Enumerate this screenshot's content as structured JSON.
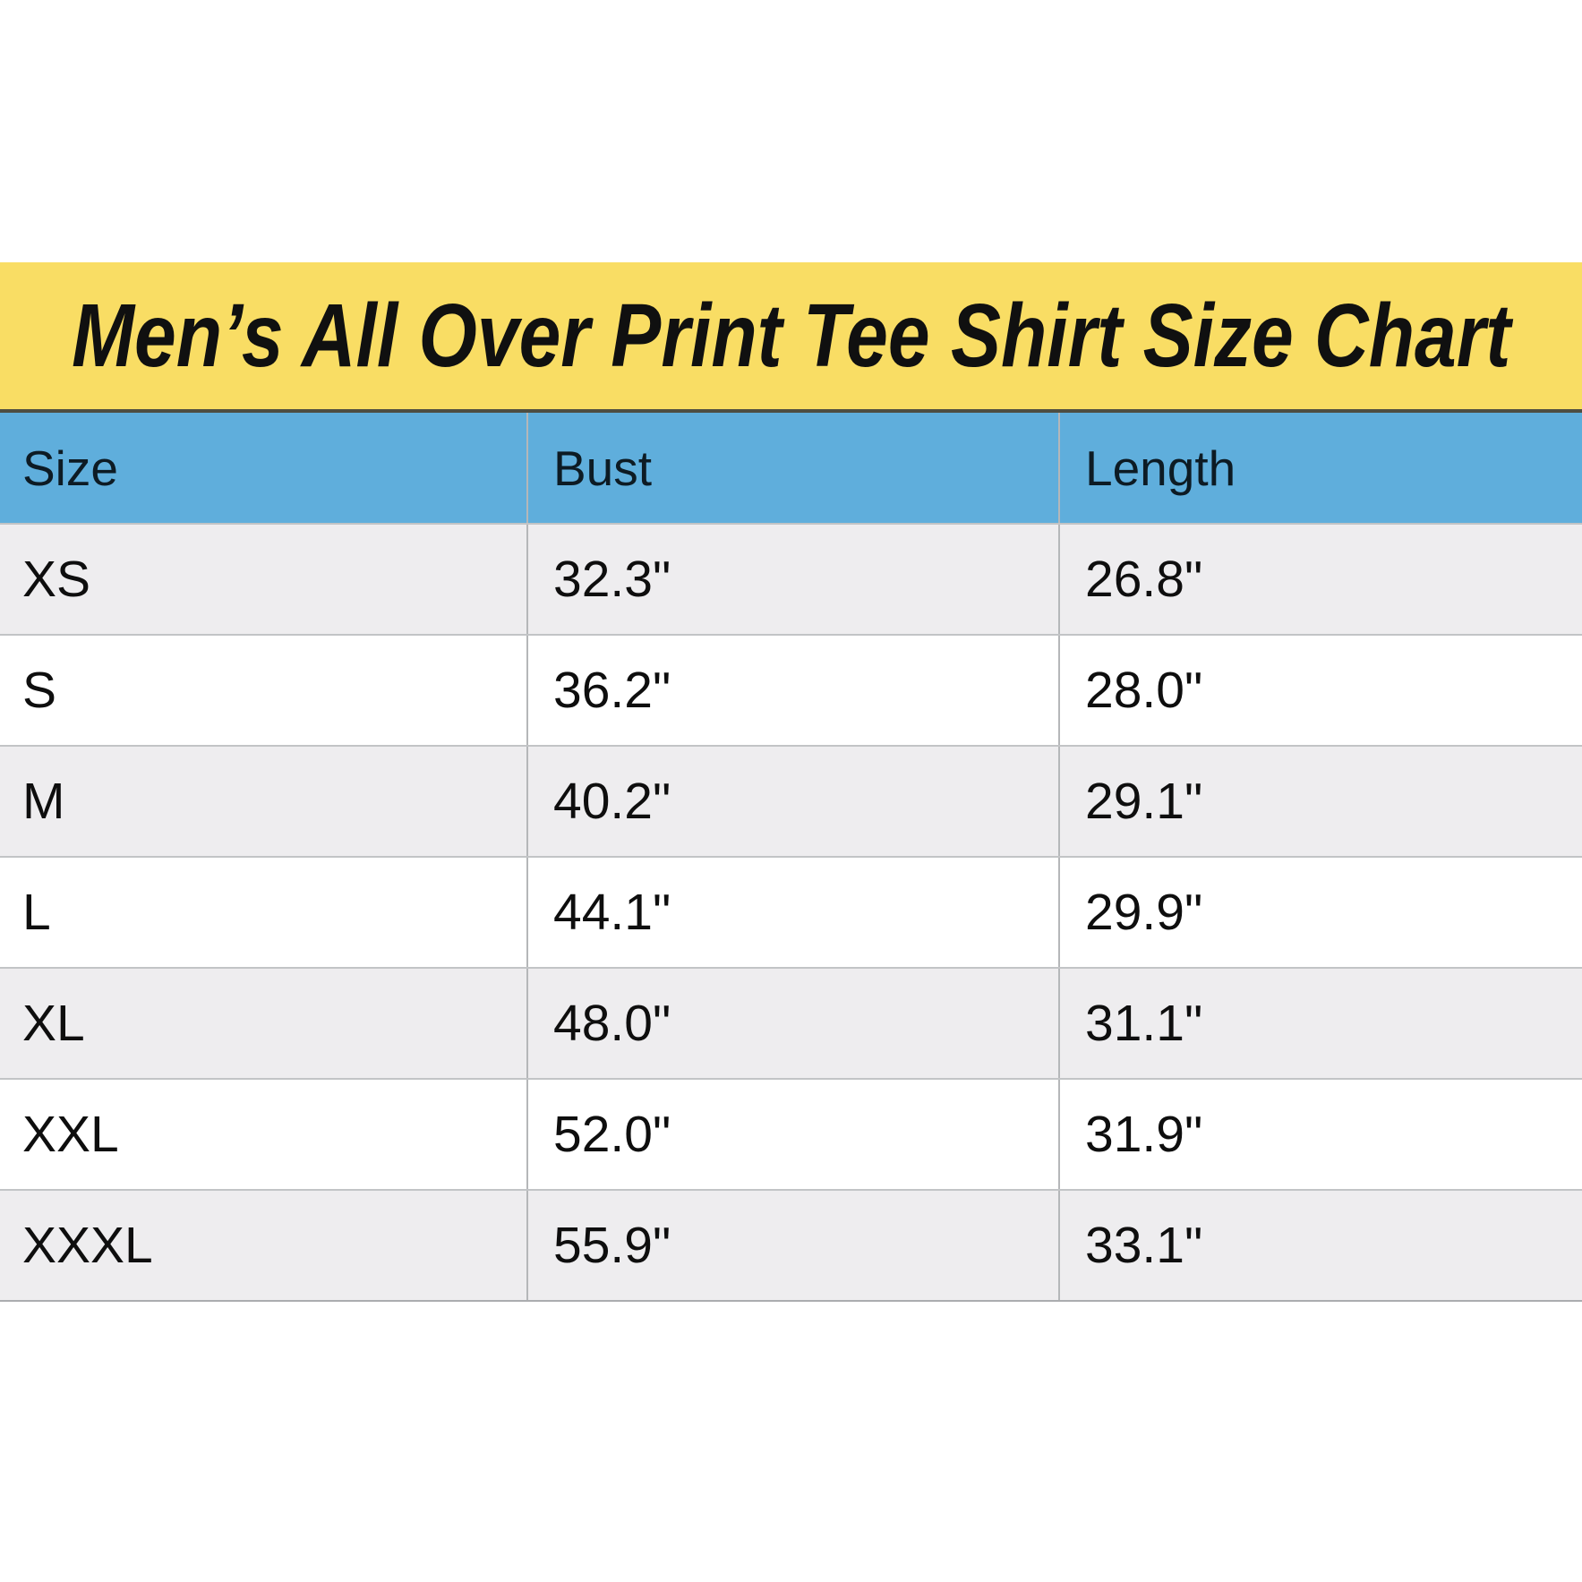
{
  "title_banner": {
    "title": "Men’s All Over Print Tee Shirt Size Chart"
  },
  "chart_data": {
    "type": "table",
    "title": "Men’s All Over Print Tee Shirt Size Chart",
    "columns": [
      "Size",
      "Bust",
      "Length"
    ],
    "rows": [
      [
        "XS",
        "32.3\"",
        "26.8\""
      ],
      [
        "S",
        "36.2\"",
        "28.0\""
      ],
      [
        "M",
        "40.2\"",
        "29.1\""
      ],
      [
        "L",
        "44.1\"",
        "29.9\""
      ],
      [
        "XL",
        "48.0\"",
        "31.1\""
      ],
      [
        "XXL",
        "52.0\"",
        "31.9\""
      ],
      [
        "XXXL",
        "55.9\"",
        "33.1\""
      ]
    ],
    "layout_hints": {
      "header_position": "top",
      "stripes": "first data row shaded, alternating",
      "grid": "vertical dividers between columns, horizontal dividers between rows"
    }
  },
  "colors": {
    "banner_background": "#F9DD64",
    "banner_border_bottom": "#4E4E42",
    "header_background": "#5FAEDC",
    "row_stripe": "#EEEDEF",
    "row_plain": "#FFFFFF",
    "divider": "#B5B7B9",
    "text": "#0E0E0E",
    "page_background": "#FFFFFF"
  }
}
